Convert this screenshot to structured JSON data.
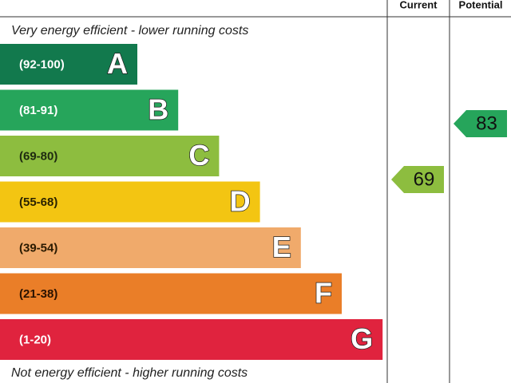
{
  "chart_data": {
    "type": "energy-rating",
    "header": {
      "current": "Current",
      "potential": "Potential"
    },
    "top_note": "Very energy efficient - lower running costs",
    "bottom_note": "Not energy efficient - higher running costs",
    "bands": [
      {
        "range": "(92-100)",
        "letter": "A",
        "color": "#12794d",
        "text_color": "#ffffff"
      },
      {
        "range": "(81-91)",
        "letter": "B",
        "color": "#26a55b",
        "text_color": "#ffffff"
      },
      {
        "range": "(69-80)",
        "letter": "C",
        "color": "#8dbd3f",
        "text_color": "#1e2a10"
      },
      {
        "range": "(55-68)",
        "letter": "D",
        "color": "#f3c512",
        "text_color": "#2a2200"
      },
      {
        "range": "(39-54)",
        "letter": "E",
        "color": "#f0aa6b",
        "text_color": "#2a1a00"
      },
      {
        "range": "(21-38)",
        "letter": "F",
        "color": "#ea7e28",
        "text_color": "#2a1200"
      },
      {
        "range": "(1-20)",
        "letter": "G",
        "color": "#e0233e",
        "text_color": "#ffffff"
      }
    ],
    "current": {
      "value": 69,
      "color": "#8dbd3f"
    },
    "potential": {
      "value": 83,
      "color": "#26a55b"
    }
  }
}
